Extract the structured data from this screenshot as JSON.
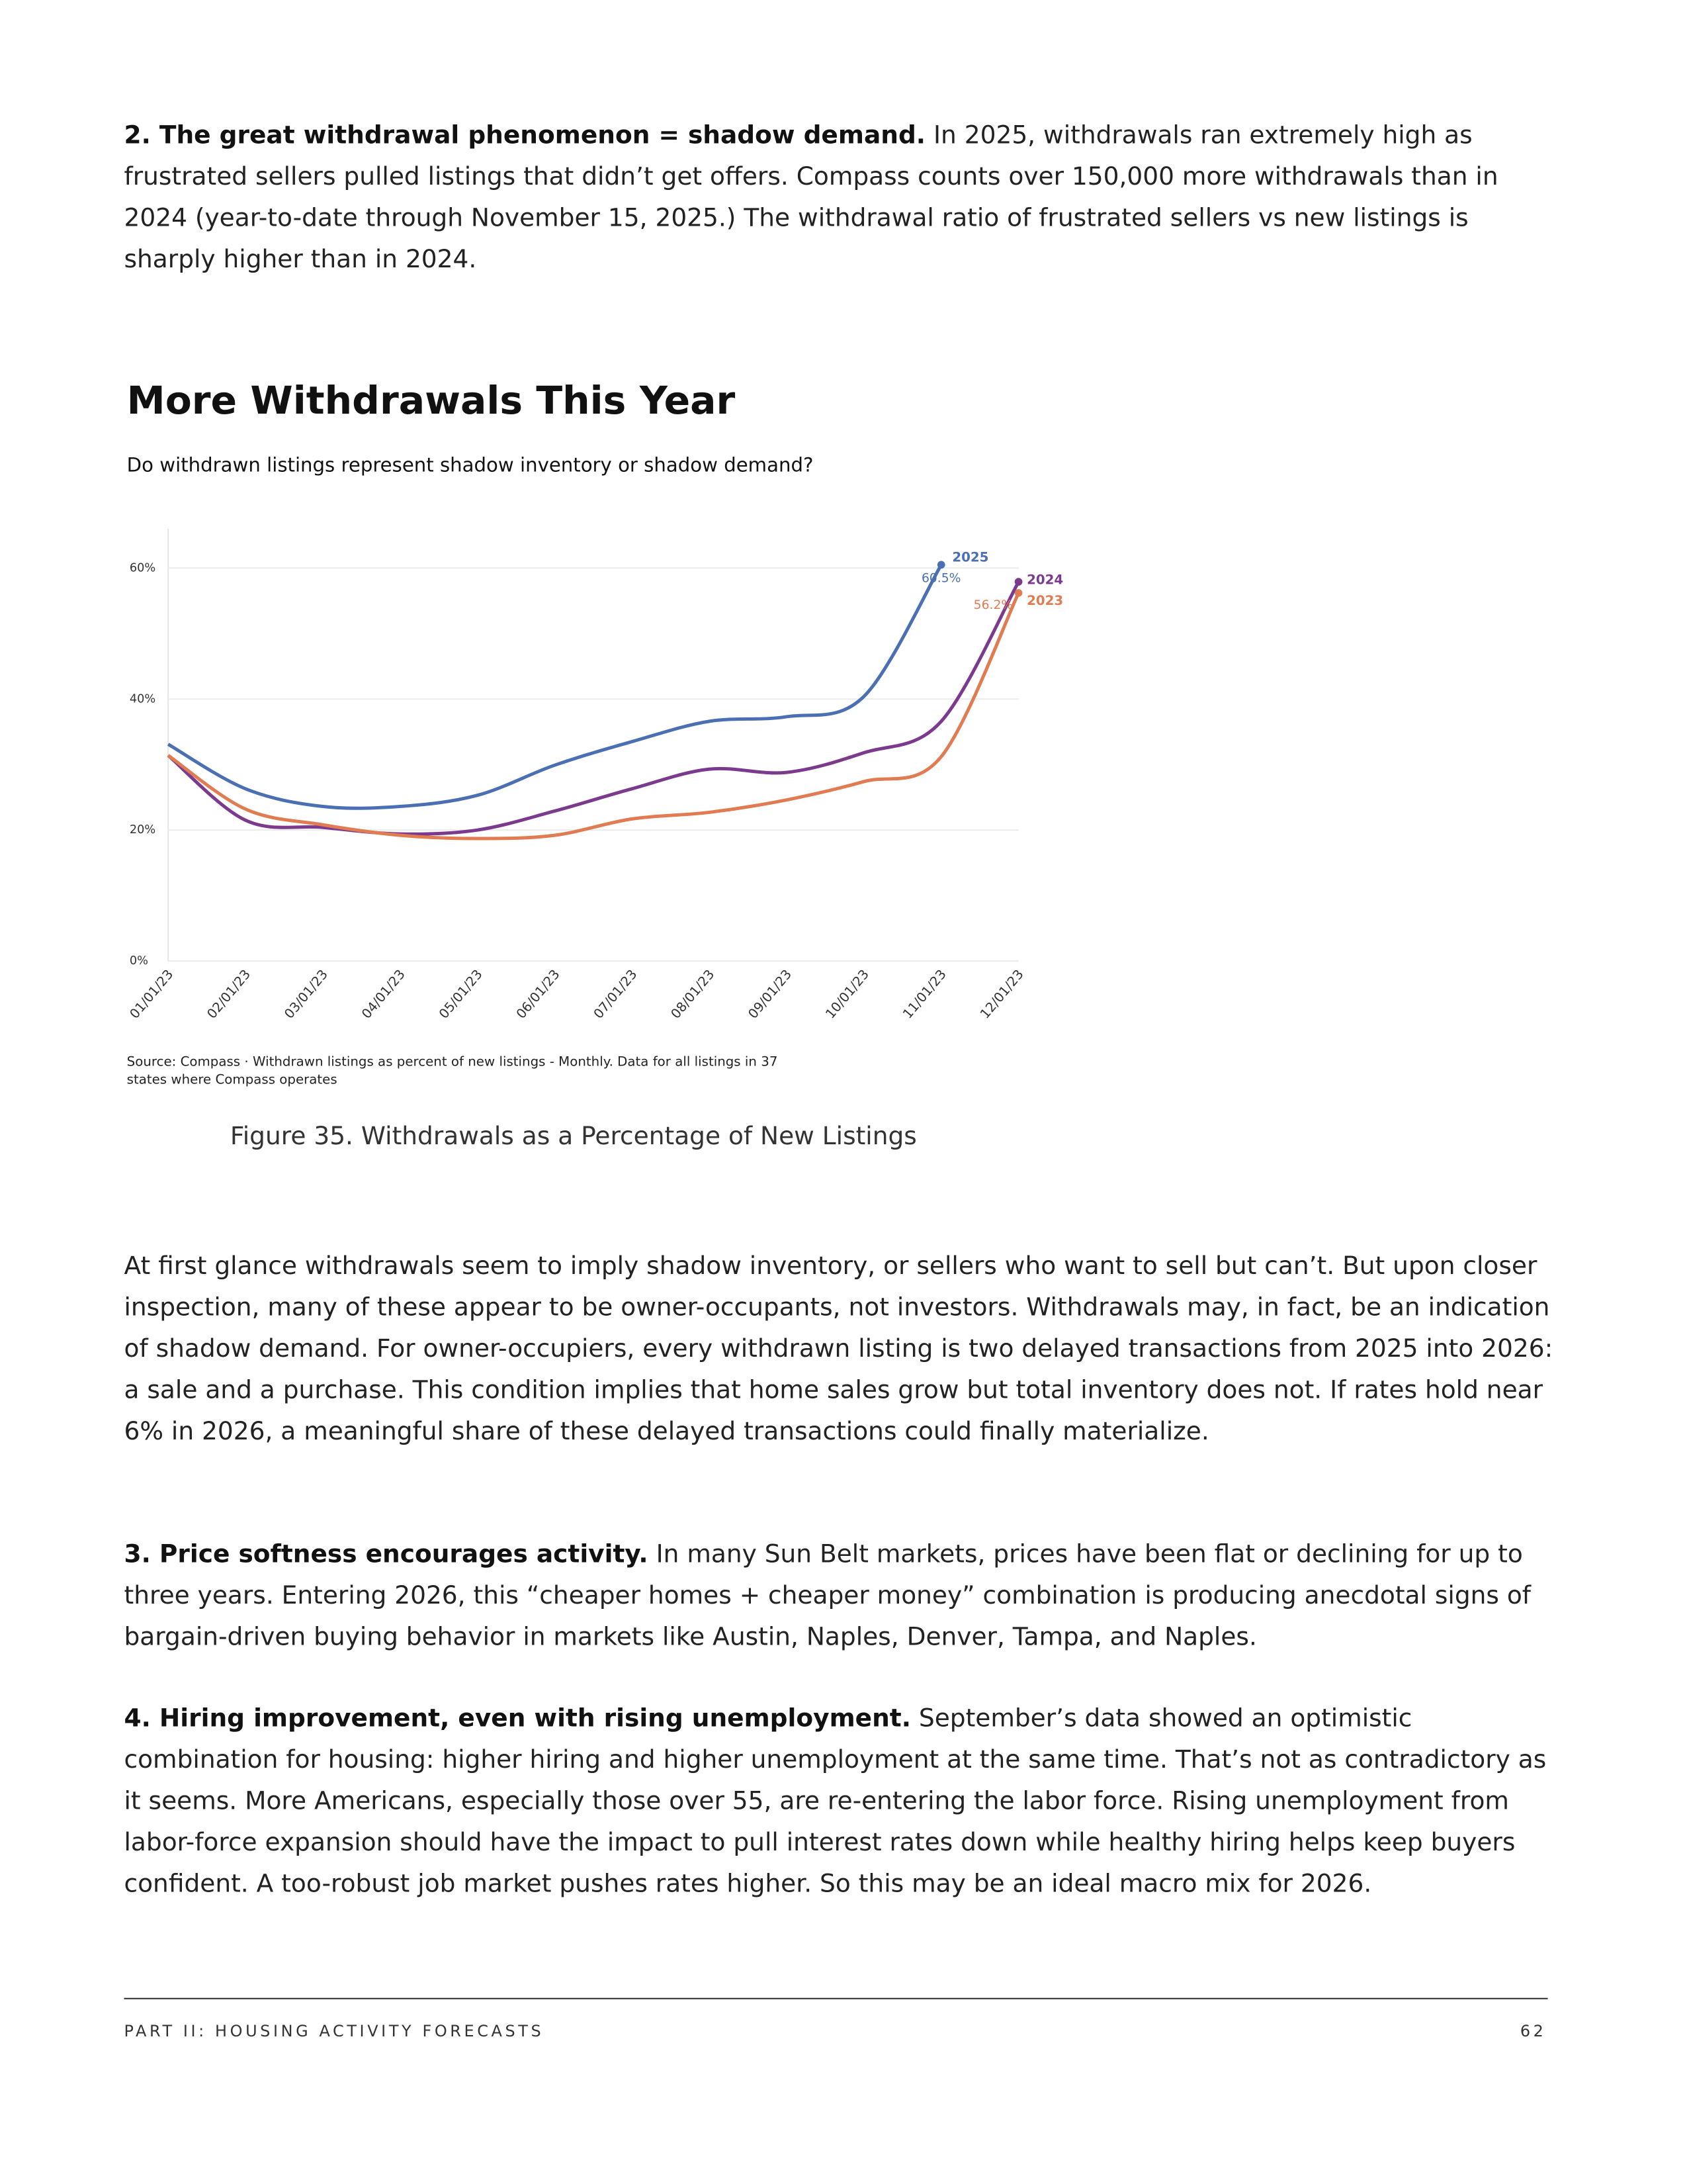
{
  "intro": {
    "lead": "2. The great withdrawal phenomenon = shadow demand.",
    "text": "In 2025, withdrawals ran extremely high as frustrated sellers pulled listings that didn’t get offers. Compass counts over 150,000 more withdrawals than in 2024 (year-to-date through November 15, 2025.) The withdrawal ratio of frustrated sellers vs new listings is sharply higher than in 2024."
  },
  "chart_data": {
    "type": "line",
    "title": "More Withdrawals This Year",
    "subtitle": "Do withdrawn listings represent shadow inventory or shadow demand?",
    "source": "Source: Compass · Withdrawn listings as percent of new listings - Monthly. Data for all listings in 37 states where Compass operates",
    "categories": [
      "01/01/23",
      "02/01/23",
      "03/01/23",
      "04/01/23",
      "05/01/23",
      "06/01/23",
      "07/01/23",
      "08/01/23",
      "09/01/23",
      "10/01/23",
      "11/01/23",
      "12/01/23"
    ],
    "series": [
      {
        "name": "2025",
        "color": "#4b6fb3",
        "values": [
          33.1,
          26.3,
          23.6,
          23.6,
          25.3,
          29.9,
          33.5,
          36.6,
          37.3,
          40.4,
          60.5,
          null
        ],
        "value_labels": [
          null,
          null,
          null,
          null,
          null,
          null,
          null,
          null,
          null,
          null,
          "60.5%",
          null
        ]
      },
      {
        "name": "2024",
        "color": "#7b3a8e",
        "values": [
          31.4,
          21.5,
          20.4,
          19.4,
          20.0,
          22.9,
          26.3,
          29.3,
          28.8,
          31.8,
          36.6,
          57.9
        ]
      },
      {
        "name": "2023",
        "color": "#e07b52",
        "values": [
          31.4,
          23.2,
          20.8,
          19.2,
          18.7,
          19.2,
          21.7,
          22.7,
          24.6,
          27.4,
          31.2,
          56.2
        ],
        "value_labels": [
          null,
          null,
          null,
          null,
          null,
          null,
          null,
          null,
          null,
          null,
          null,
          "56.2%"
        ]
      }
    ],
    "ylim": [
      0,
      66
    ],
    "yticks": [
      {
        "value": 0,
        "label": "0%"
      },
      {
        "value": 20,
        "label": "20%"
      },
      {
        "value": 40,
        "label": "40%"
      },
      {
        "value": 60,
        "label": "60%"
      }
    ],
    "grid": true
  },
  "caption": "Figure 35. Withdrawals as a Percentage of New Listings",
  "body": [
    {
      "text": "At first glance withdrawals seem to imply shadow inventory, or sellers who want to sell but can’t. But upon closer inspection, many of these appear to be owner-occupants, not investors. Withdrawals may, in fact, be an indication of shadow demand. For owner-occupiers, every withdrawn listing is two delayed transactions from 2025 into 2026: a sale and a purchase. This condition implies that home sales grow but total inventory does not. If rates hold near 6% in 2026, a meaningful share of these delayed transactions could finally materialize."
    },
    {
      "lead": "3. Price softness encourages activity.",
      "text": "In many Sun Belt markets, prices have been flat or declining for up to three years. Entering 2026, this “cheaper homes + cheaper money” combination is producing anecdotal signs of bargain-driven buying behavior in markets like Austin, Naples, Denver, Tampa, and Naples."
    },
    {
      "lead": "4. Hiring improvement, even with rising unemployment.",
      "text": "September’s data showed an optimistic combination for housing: higher hiring and higher unemployment at the same time. That’s not as contradictory as it seems. More Americans, especially those over 55, are re-entering the labor force. Rising unemployment from labor-force expansion should have the impact to pull interest rates down while healthy hiring helps keep buyers confident. A too-robust job market pushes rates higher. So this may be an ideal macro mix for 2026."
    }
  ],
  "footer": {
    "section": "PART II: HOUSING ACTIVITY FORECASTS",
    "page": "62"
  }
}
